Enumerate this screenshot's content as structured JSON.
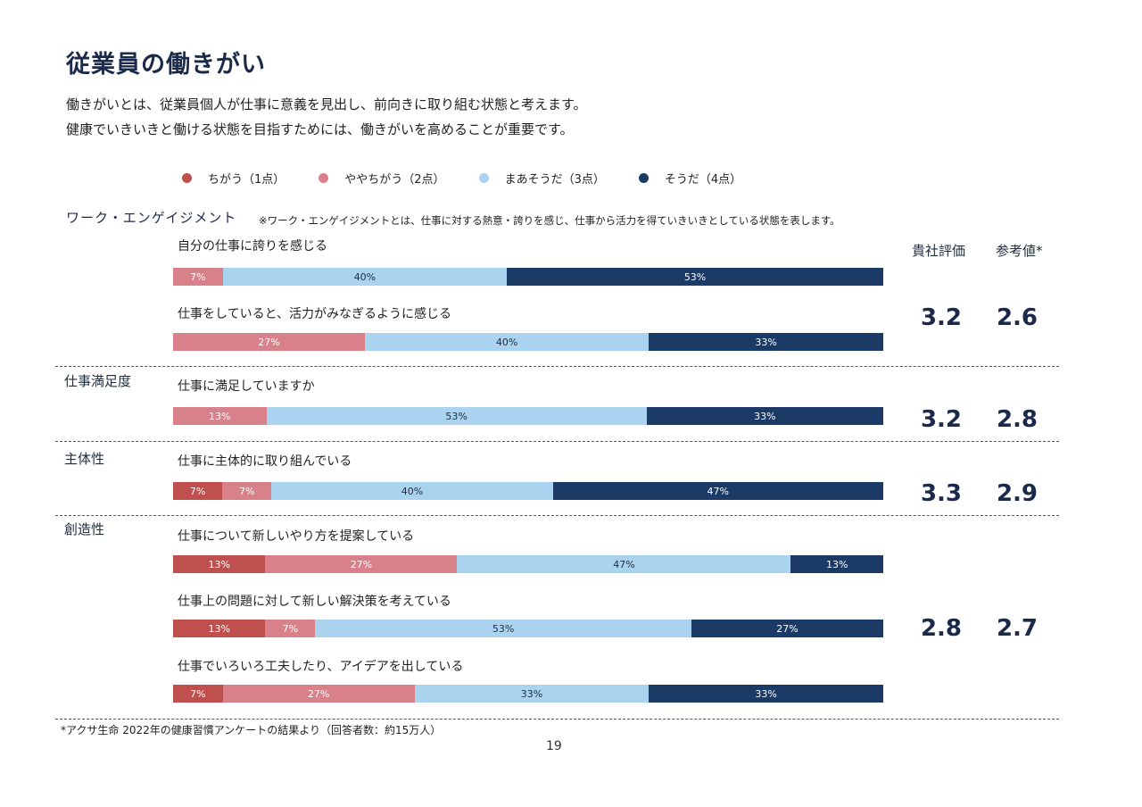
{
  "title": "従業員の働きがい",
  "intro": [
    "働きがいとは、従業員個人が仕事に意義を見出し、前向きに取り組む状態と考えます。",
    "健康でいきいきと働ける状態を目指すためには、働きがいを高めることが重要です。"
  ],
  "legend": [
    {
      "label": "ちがう（1点）",
      "color": "#c0504d"
    },
    {
      "label": "ややちがう（2点）",
      "color": "#d9818a"
    },
    {
      "label": "まあそうだ（3点）",
      "color": "#a9d3ef"
    },
    {
      "label": "そうだ（4点）",
      "color": "#1b3a66"
    }
  ],
  "work_engagement": {
    "title": "ワーク・エンゲイジメント",
    "note": "※ワーク・エンゲイジメントとは、仕事に対する熱意・誇りを感じ、仕事から活力を得ていきいきとしている状態を表します。"
  },
  "columns": {
    "own": "貴社評価",
    "reference": "参考値*"
  },
  "chart_data": {
    "type": "bar",
    "orientation": "horizontal",
    "stacked": true,
    "series_names": [
      "ちがう（1点）",
      "ややちがう（2点）",
      "まあそうだ（3点）",
      "そうだ（4点）"
    ],
    "groups": [
      {
        "category": "",
        "own_score": "3.2",
        "reference_score": "2.6",
        "questions": [
          {
            "label": "自分の仕事に誇りを感じる",
            "values": [
              0,
              7,
              40,
              53
            ]
          },
          {
            "label": "仕事をしていると、活力がみなぎるように感じる",
            "values": [
              0,
              27,
              40,
              33
            ]
          }
        ]
      },
      {
        "category": "仕事満足度",
        "own_score": "3.2",
        "reference_score": "2.8",
        "questions": [
          {
            "label": "仕事に満足していますか",
            "values": [
              0,
              13,
              53,
              33
            ]
          }
        ]
      },
      {
        "category": "主体性",
        "own_score": "3.3",
        "reference_score": "2.9",
        "questions": [
          {
            "label": "仕事に主体的に取り組んでいる",
            "values": [
              7,
              7,
              40,
              47
            ]
          }
        ]
      },
      {
        "category": "創造性",
        "own_score": "2.8",
        "reference_score": "2.7",
        "questions": [
          {
            "label": "仕事について新しいやり方を提案している",
            "values": [
              13,
              27,
              47,
              13
            ]
          },
          {
            "label": "仕事上の問題に対して新しい解決策を考えている",
            "values": [
              13,
              7,
              53,
              27
            ]
          },
          {
            "label": "仕事でいろいろ工夫したり、アイデアを出している",
            "values": [
              7,
              27,
              33,
              33
            ]
          }
        ]
      }
    ]
  },
  "footnote": "*アクサ生命 2022年の健康習慣アンケートの結果より（回答者数：約15万人）",
  "page_number": "19"
}
